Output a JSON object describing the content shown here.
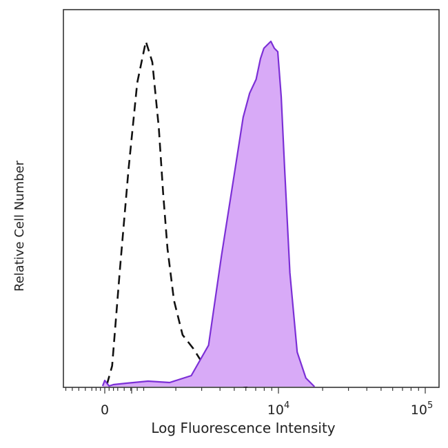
{
  "chart_data": {
    "type": "area",
    "title": "",
    "xlabel": "Log Fluorescence Intensity",
    "ylabel": "Relative Cell Number",
    "x_scale": "biexponential (log10 with linear region near 0)",
    "x_tick_labels": [
      {
        "base": "0",
        "exp": ""
      },
      {
        "base": "10",
        "exp": "4"
      },
      {
        "base": "10",
        "exp": "5"
      }
    ],
    "xlim": [
      -0.6,
      5.1
    ],
    "ylim": [
      0,
      100
    ],
    "grid": false,
    "legend": "none",
    "series": [
      {
        "style": "dashed-outline",
        "color": "#111111",
        "x": [
          0.05,
          0.17,
          0.35,
          0.55,
          0.75,
          0.95,
          1.1,
          1.25,
          1.35,
          1.45,
          1.6,
          1.8,
          2.05,
          2.3,
          2.55,
          2.8,
          3.05,
          3.3
        ],
        "y": [
          0.6,
          6,
          34,
          63,
          88,
          100,
          94,
          75,
          56,
          40,
          25,
          15,
          11,
          6,
          3,
          1.5,
          0.6,
          0
        ]
      },
      {
        "style": "filled",
        "color": "#7b2fd6",
        "fill": "#d8aaf7",
        "x": [
          -0.05,
          0.0,
          0.05,
          0.1,
          0.2,
          0.5,
          1.0,
          1.5,
          2.0,
          2.4,
          2.7,
          3.0,
          3.2,
          3.35,
          3.5,
          3.6,
          3.68,
          3.76,
          3.84,
          3.92,
          4.0,
          4.08,
          4.16,
          4.28,
          4.45,
          4.65,
          4.85
        ],
        "y": [
          0.2,
          1.8,
          1.0,
          0.2,
          0.6,
          1.0,
          1.6,
          1.2,
          3.2,
          12,
          38,
          62,
          78,
          85,
          89,
          95,
          98,
          99,
          100,
          98,
          97,
          84,
          63,
          33,
          10,
          2.5,
          0
        ]
      }
    ]
  }
}
